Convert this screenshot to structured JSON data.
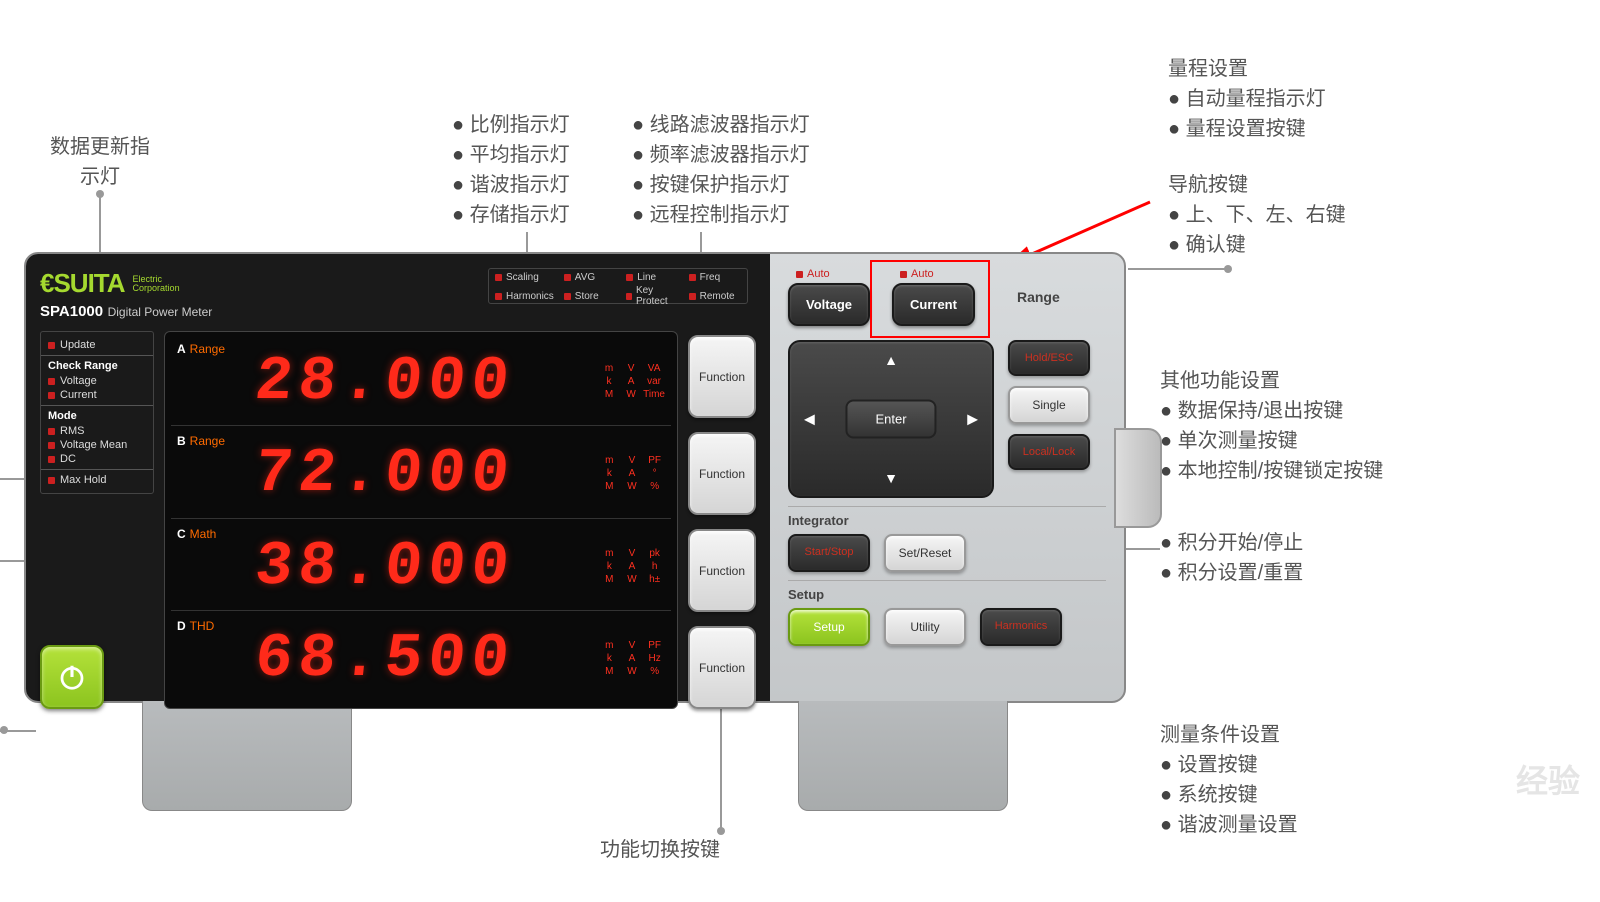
{
  "callouts": {
    "update": {
      "title": "数据更新指\n示灯"
    },
    "ratio": {
      "lines": [
        "比例指示灯",
        "平均指示灯",
        "谐波指示灯",
        "存储指示灯"
      ]
    },
    "line": {
      "lines": [
        "线路滤波器指示灯",
        "频率滤波器指示灯",
        "按键保护指示灯",
        "远程控制指示灯"
      ]
    },
    "range": {
      "title": "量程设置",
      "lines": [
        "自动量程指示灯",
        "量程设置按键"
      ]
    },
    "nav": {
      "title": "导航按键",
      "lines": [
        "上、下、左、右键",
        "确认键"
      ]
    },
    "other": {
      "title": "其他功能设置",
      "lines": [
        "数据保持/退出按键",
        "单次测量按键",
        "本地控制/按键锁定按键"
      ]
    },
    "integ": {
      "lines": [
        "积分开始/停止",
        "积分设置/重置"
      ]
    },
    "meas": {
      "title": "测量条件设置",
      "lines": [
        "设置按键",
        "系统按键",
        "谐波测量设置"
      ]
    },
    "func": "功能切换按键"
  },
  "brand": {
    "name": "SUITA",
    "logo_prefix": "€",
    "sub1": "Electric",
    "sub2": "Corporation",
    "model": "SPA1000",
    "desc": "Digital Power Meter"
  },
  "top_leds": [
    "Scaling",
    "AVG",
    "Line",
    "Freq",
    "Harmonics",
    "Store",
    "Key Protect",
    "Remote"
  ],
  "side": {
    "update": "Update",
    "check": "Check Range",
    "voltage": "Voltage",
    "current": "Current",
    "mode": "Mode",
    "rms": "RMS",
    "vmean": "Voltage Mean",
    "dc": "DC",
    "max": "Max Hold"
  },
  "rows": [
    {
      "id": "A",
      "lbl": "Range",
      "val": "28.000",
      "u": [
        "m",
        "V",
        "VA",
        "k",
        "A",
        "var",
        "M",
        "W",
        "Time"
      ]
    },
    {
      "id": "B",
      "lbl": "Range",
      "val": "72.000",
      "u": [
        "m",
        "V",
        "PF",
        "k",
        "A",
        "°",
        "M",
        "W",
        "%"
      ]
    },
    {
      "id": "C",
      "lbl": "Math",
      "val": "38.000",
      "u": [
        "m",
        "V",
        "pk",
        "k",
        "A",
        "h",
        "M",
        "W",
        "h±"
      ]
    },
    {
      "id": "D",
      "lbl": "THD",
      "val": "68.500",
      "u": [
        "m",
        "V",
        "PF",
        "k",
        "A",
        "Hz",
        "M",
        "W",
        "%"
      ]
    }
  ],
  "func_btn": "Function",
  "right": {
    "auto": "Auto",
    "voltage": "Voltage",
    "current": "Current",
    "range": "Range",
    "enter": "Enter",
    "hold": "Hold/ESC",
    "single": "Single",
    "local": "Local/Lock",
    "integrator": "Integrator",
    "start": "Start/Stop",
    "set": "Set/Reset",
    "setup": "Setup",
    "setup_btn": "Setup",
    "utility": "Utility",
    "harmonics": "Harmonics"
  },
  "colors": {
    "led_red": "#cc2020",
    "digit_red": "#ff2a1a",
    "brand_green": "#a5d92f",
    "btn_green": "#8cc41f",
    "highlight": "#ff0000",
    "callout": "#555555"
  },
  "watermark": "经验"
}
